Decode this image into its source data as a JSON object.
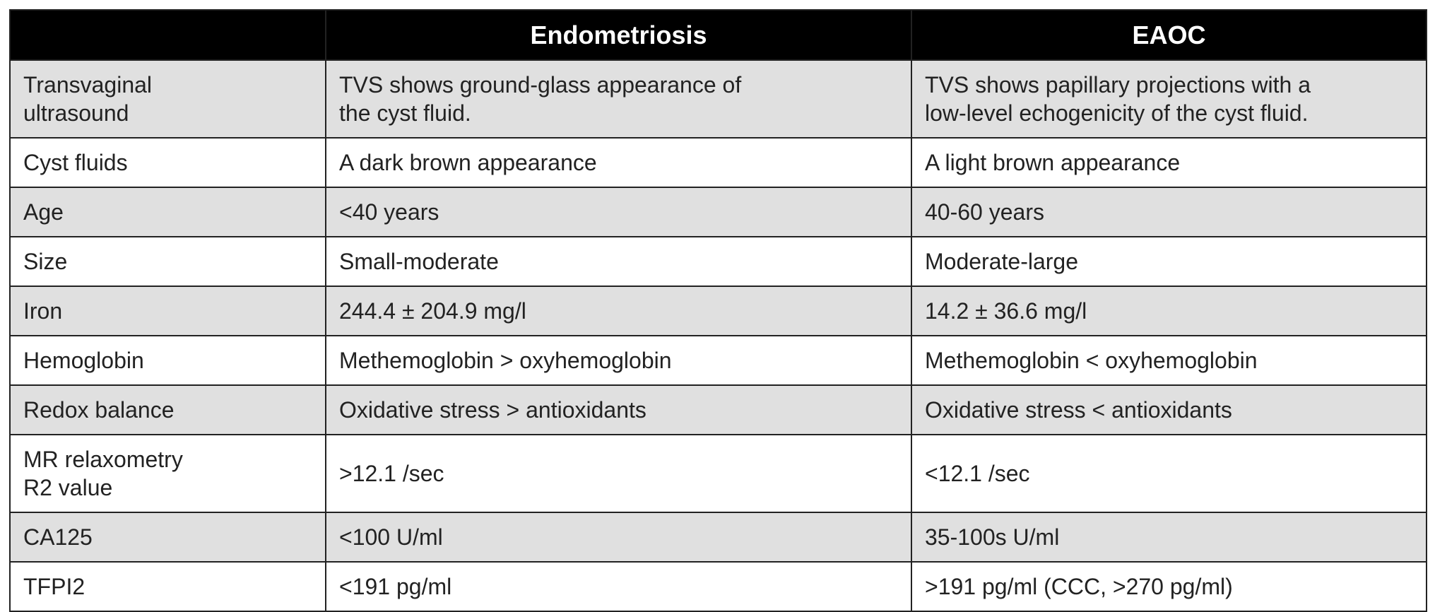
{
  "table": {
    "columns": [
      "Endometriosis",
      "EAOC"
    ],
    "rows": [
      [
        "Transvaginal\nultrasound",
        "TVS shows ground-glass appearance of\nthe cyst fluid.",
        "TVS shows papillary projections with a\nlow-level echogenicity of the cyst fluid."
      ],
      [
        "Cyst fluids",
        "A dark brown appearance",
        "A light brown appearance"
      ],
      [
        "Age",
        "<40 years",
        "40-60 years"
      ],
      [
        "Size",
        "Small-moderate",
        "Moderate-large"
      ],
      [
        "Iron",
        "244.4 ± 204.9 mg/l",
        "14.2 ± 36.6 mg/l"
      ],
      [
        "Hemoglobin",
        "Methemoglobin > oxyhemoglobin",
        "Methemoglobin < oxyhemoglobin"
      ],
      [
        "Redox balance",
        "Oxidative stress > antioxidants",
        "Oxidative stress < antioxidants"
      ],
      [
        "MR relaxometry\nR2 value",
        ">12.1 /sec",
        "<12.1 /sec"
      ],
      [
        "CA125",
        "<100 U/ml",
        "35-100s U/ml"
      ],
      [
        "TFPI2",
        "<191 pg/ml",
        ">191 pg/ml (CCC, >270 pg/ml)"
      ]
    ]
  }
}
